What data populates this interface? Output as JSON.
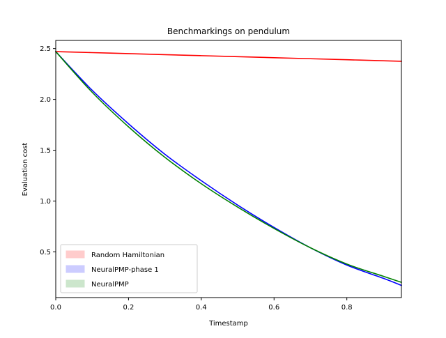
{
  "chart_data": {
    "type": "line",
    "title": "Benchmarkings on pendulum",
    "xlabel": "Timestamp",
    "ylabel": "Evaluation cost",
    "xlim": [
      0.0,
      0.95
    ],
    "ylim": [
      0.05,
      2.58
    ],
    "grid": false,
    "legend_position": "lower-left",
    "xticks": [
      0.0,
      0.2,
      0.4,
      0.6,
      0.8
    ],
    "xtick_labels": [
      "0.0",
      "0.2",
      "0.4",
      "0.6",
      "0.8"
    ],
    "yticks": [
      0.5,
      1.0,
      1.5,
      2.0,
      2.5
    ],
    "ytick_labels": [
      "0.5",
      "1.0",
      "1.5",
      "2.0",
      "2.5"
    ],
    "x": [
      0.0,
      0.1,
      0.2,
      0.3,
      0.4,
      0.5,
      0.6,
      0.7,
      0.8,
      0.9,
      0.95
    ],
    "series": [
      {
        "name": "Random Hamiltonian",
        "color": "#ff0000",
        "legend_fill": "#ffcccc",
        "values": [
          2.47,
          2.46,
          2.45,
          2.44,
          2.43,
          2.42,
          2.41,
          2.4,
          2.39,
          2.38,
          2.375
        ]
      },
      {
        "name": "NeuralPMP-phase 1",
        "color": "#0000ff",
        "legend_fill": "#ccccff",
        "values": [
          2.47,
          2.09,
          1.76,
          1.46,
          1.2,
          0.96,
          0.74,
          0.54,
          0.37,
          0.24,
          0.17
        ]
      },
      {
        "name": "NeuralPMP",
        "color": "#008000",
        "legend_fill": "#cce6cc",
        "values": [
          2.47,
          2.07,
          1.73,
          1.43,
          1.17,
          0.94,
          0.73,
          0.54,
          0.38,
          0.26,
          0.2
        ]
      }
    ]
  }
}
